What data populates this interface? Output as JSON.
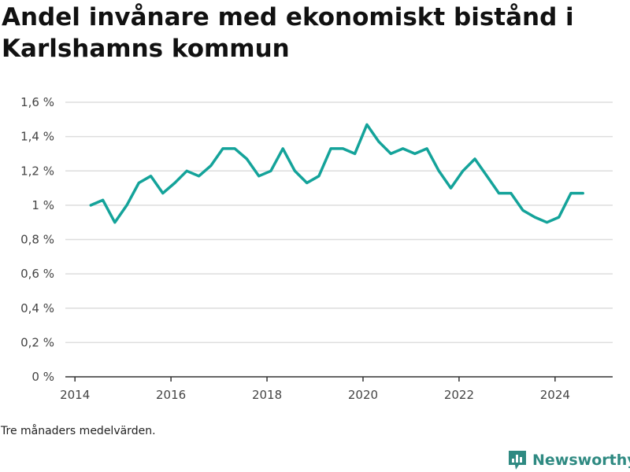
{
  "title": "Andel invånare med ekonomiskt bistånd i Karlshamns kommun",
  "note": "Tre månaders medelvärden.",
  "brand": {
    "name": "Newsworthy",
    "icon": "newsworthy-logo-icon",
    "color": "#2f8a82"
  },
  "colors": {
    "line": "#14a39a",
    "grid": "#dddddd",
    "axis": "#333333"
  },
  "chart_data": {
    "type": "line",
    "title": "Andel invånare med ekonomiskt bistånd i Karlshamns kommun",
    "xlabel": "",
    "ylabel": "",
    "xlim": [
      2013.8,
      2025.2
    ],
    "ylim": [
      0,
      1.6
    ],
    "x_ticks": [
      2014,
      2016,
      2018,
      2020,
      2022,
      2024
    ],
    "x_tick_labels": [
      "2014",
      "2016",
      "2018",
      "2020",
      "2022",
      "2024"
    ],
    "y_ticks": [
      0,
      0.2,
      0.4,
      0.6,
      0.8,
      1.0,
      1.2,
      1.4,
      1.6
    ],
    "y_tick_labels": [
      "0 %",
      "0,2 %",
      "0,4 %",
      "0,6 %",
      "0,8 %",
      "1 %",
      "1,2 %",
      "1,4 %",
      "1,6 %"
    ],
    "grid": true,
    "legend": "none",
    "series": [
      {
        "x": [
          2014.33,
          2014.58,
          2014.83,
          2015.08,
          2015.33,
          2015.58,
          2015.83,
          2016.08,
          2016.33,
          2016.58,
          2016.83,
          2017.08,
          2017.33,
          2017.58,
          2017.83,
          2018.08,
          2018.33,
          2018.58,
          2018.83,
          2019.08,
          2019.33,
          2019.58,
          2019.83,
          2020.08,
          2020.33,
          2020.58,
          2020.83,
          2021.08,
          2021.33,
          2021.58,
          2021.83,
          2022.08,
          2022.33,
          2022.58,
          2022.83,
          2023.08,
          2023.33,
          2023.58,
          2023.83,
          2024.08,
          2024.33,
          2024.58
        ],
        "values": [
          1.0,
          1.03,
          0.9,
          1.0,
          1.13,
          1.17,
          1.07,
          1.13,
          1.2,
          1.17,
          1.23,
          1.33,
          1.33,
          1.27,
          1.17,
          1.2,
          1.33,
          1.2,
          1.13,
          1.17,
          1.33,
          1.33,
          1.3,
          1.47,
          1.37,
          1.3,
          1.33,
          1.3,
          1.33,
          1.2,
          1.1,
          1.2,
          1.27,
          1.17,
          1.07,
          1.07,
          0.97,
          0.93,
          0.9,
          0.93,
          1.07,
          1.07
        ]
      }
    ]
  }
}
